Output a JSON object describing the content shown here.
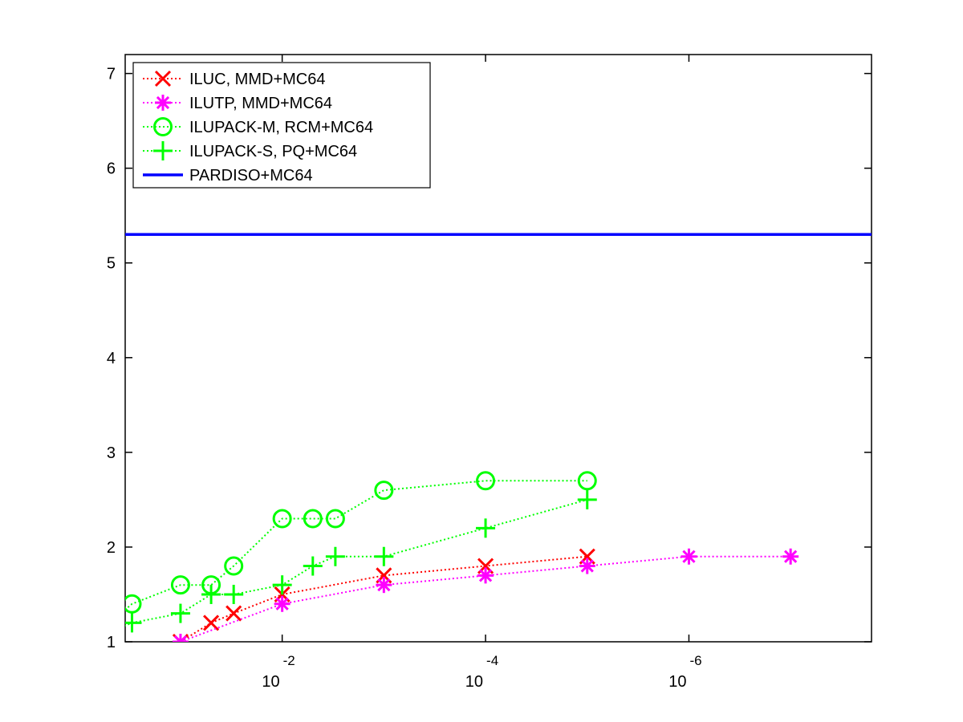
{
  "chart_data": {
    "type": "line",
    "title": "",
    "xlabel": "",
    "ylabel": "",
    "xscale": "log",
    "x_reversed": true,
    "xlim": [
      0.35,
      1.6e-08
    ],
    "ylim": [
      1,
      7.2
    ],
    "x_ticks": [
      {
        "base": "10",
        "exp": "-2",
        "value": 0.01
      },
      {
        "base": "10",
        "exp": "-4",
        "value": 0.0001
      },
      {
        "base": "10",
        "exp": "-6",
        "value": 1e-06
      }
    ],
    "y_ticks": [
      {
        "label": "1",
        "value": 1
      },
      {
        "label": "2",
        "value": 2
      },
      {
        "label": "3",
        "value": 3
      },
      {
        "label": "4",
        "value": 4
      },
      {
        "label": "5",
        "value": 5
      },
      {
        "label": "6",
        "value": 6
      },
      {
        "label": "7",
        "value": 7
      }
    ],
    "grid": false,
    "legend_position": "top-left",
    "series": [
      {
        "name": "ILUC, MMD+MC64",
        "color": "#ff0000",
        "marker": "x",
        "line": "dotted",
        "x": [
          0.1,
          0.05,
          0.03,
          0.01,
          0.001,
          0.0001,
          1e-05
        ],
        "y": [
          1.0,
          1.2,
          1.3,
          1.5,
          1.7,
          1.8,
          1.9
        ]
      },
      {
        "name": "ILUTP, MMD+MC64",
        "color": "#ff00ff",
        "marker": "asterisk",
        "line": "dotted",
        "x": [
          0.1,
          0.01,
          0.001,
          0.0001,
          1e-05,
          1e-06,
          1e-07
        ],
        "y": [
          1.0,
          1.4,
          1.6,
          1.7,
          1.8,
          1.9,
          1.9
        ]
      },
      {
        "name": "ILUPACK-M, RCM+MC64",
        "color": "#00ff00",
        "marker": "circle",
        "line": "dotted",
        "x": [
          0.5,
          0.3,
          0.1,
          0.05,
          0.03,
          0.01,
          0.005,
          0.003,
          0.001,
          0.0001,
          1e-05
        ],
        "y": [
          1.2,
          1.4,
          1.6,
          1.6,
          1.8,
          2.3,
          2.3,
          2.3,
          2.6,
          2.7,
          2.7
        ]
      },
      {
        "name": "ILUPACK-S, PQ+MC64",
        "color": "#00ff00",
        "marker": "plus",
        "line": "dotted",
        "x": [
          0.5,
          0.3,
          0.1,
          0.05,
          0.03,
          0.01,
          0.005,
          0.003,
          0.001,
          0.0001,
          1e-05
        ],
        "y": [
          1.1,
          1.2,
          1.3,
          1.5,
          1.5,
          1.6,
          1.8,
          1.9,
          1.9,
          2.2,
          2.5
        ]
      },
      {
        "name": "PARDISO+MC64",
        "color": "#0000ff",
        "marker": "none",
        "line": "solid",
        "x": [
          0.35,
          1.6e-08
        ],
        "y": [
          5.3,
          5.3
        ]
      }
    ]
  }
}
